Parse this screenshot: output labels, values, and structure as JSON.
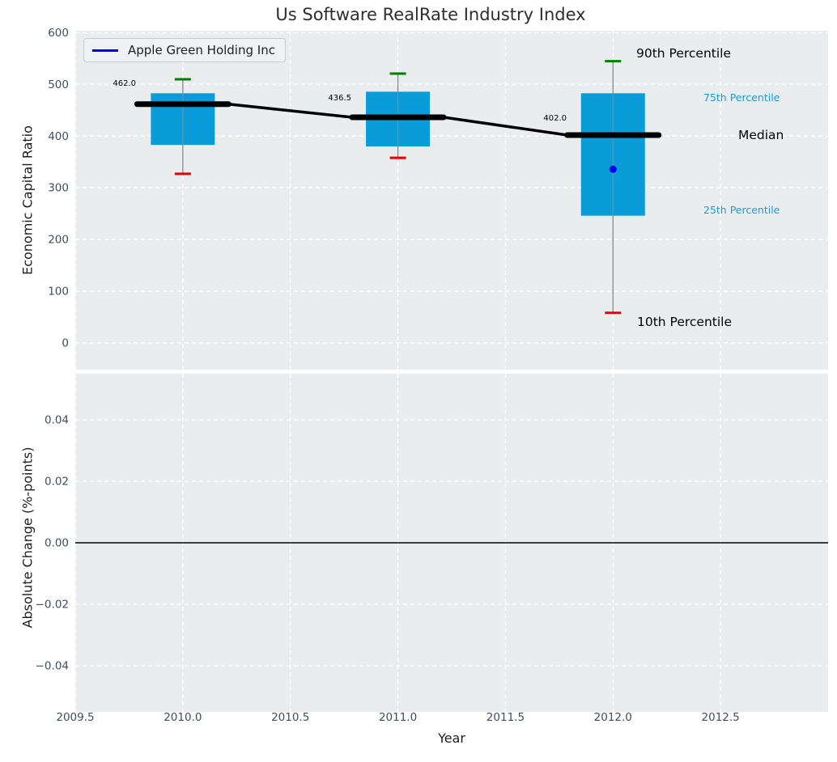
{
  "title": "Us Software RealRate Industry Index",
  "legend": {
    "label": "Apple Green Holding Inc"
  },
  "labels": {
    "p90": "90th Percentile",
    "p75": "75th Percentile",
    "median": "Median",
    "p25": "25th Percentile",
    "p10": "10th Percentile"
  },
  "colors": {
    "box": "#0a9cd8",
    "p90_cap": "#008000",
    "p10_cap": "#e60000",
    "whisker": "#85898c",
    "median_line": "#000000",
    "company": "#0000ee",
    "percentile_blue": "#189cd8",
    "axes_bg": "#eaedee",
    "grid": "#ffffff",
    "tick_text": "#3f4e5e",
    "zero_line": "#000000"
  },
  "chart_data": [
    {
      "type": "boxplot-timeseries",
      "title": "Us Software RealRate Industry Index",
      "xlabel": "Year",
      "ylabel": "Economic Capital Ratio",
      "xlim": [
        2009.5,
        2013.0
      ],
      "ylim": [
        -52,
        604
      ],
      "grid": "white dashed, on",
      "legend_position": "upper left",
      "xticks": [
        {
          "v": 2009.5,
          "label": "2009.5"
        },
        {
          "v": 2010.0,
          "label": "2010.0"
        },
        {
          "v": 2010.5,
          "label": "2010.5"
        },
        {
          "v": 2011.0,
          "label": "2011.0"
        },
        {
          "v": 2011.5,
          "label": "2011.5"
        },
        {
          "v": 2012.0,
          "label": "2012.0"
        },
        {
          "v": 2012.5,
          "label": "2012.5"
        }
      ],
      "yticks": [
        {
          "v": 600,
          "label": "600"
        },
        {
          "v": 500,
          "label": "500"
        },
        {
          "v": 400,
          "label": "400"
        },
        {
          "v": 300,
          "label": "300"
        },
        {
          "v": 200,
          "label": "200"
        },
        {
          "v": 100,
          "label": "100"
        },
        {
          "v": 0,
          "label": "0"
        }
      ],
      "boxes": [
        {
          "year": 2010,
          "p10": 327,
          "p25": 383,
          "median": 462.0,
          "p75": 483,
          "p90": 510,
          "median_label": "462.0"
        },
        {
          "year": 2011,
          "p10": 358,
          "p25": 380,
          "median": 436.5,
          "p75": 486,
          "p90": 521,
          "median_label": "436.5"
        },
        {
          "year": 2012,
          "p10": 58,
          "p25": 246,
          "median": 402.0,
          "p75": 483,
          "p90": 545,
          "median_label": "402.0"
        }
      ],
      "company_point": {
        "name": "Apple Green Holding Inc",
        "year": 2012,
        "value": 336
      }
    },
    {
      "type": "bar",
      "xlabel": "Year",
      "ylabel": "Absolute Change (%-points)",
      "ylim": [
        -0.055,
        0.055
      ],
      "grid": "white dashed, on",
      "series": [],
      "zero_line": 0.0,
      "yticks": [
        {
          "v": 0.04,
          "label": "0.04"
        },
        {
          "v": 0.02,
          "label": "0.02"
        },
        {
          "v": 0.0,
          "label": "0.00"
        },
        {
          "v": -0.02,
          "label": "−0.02"
        },
        {
          "v": -0.04,
          "label": "−0.04"
        }
      ]
    }
  ]
}
